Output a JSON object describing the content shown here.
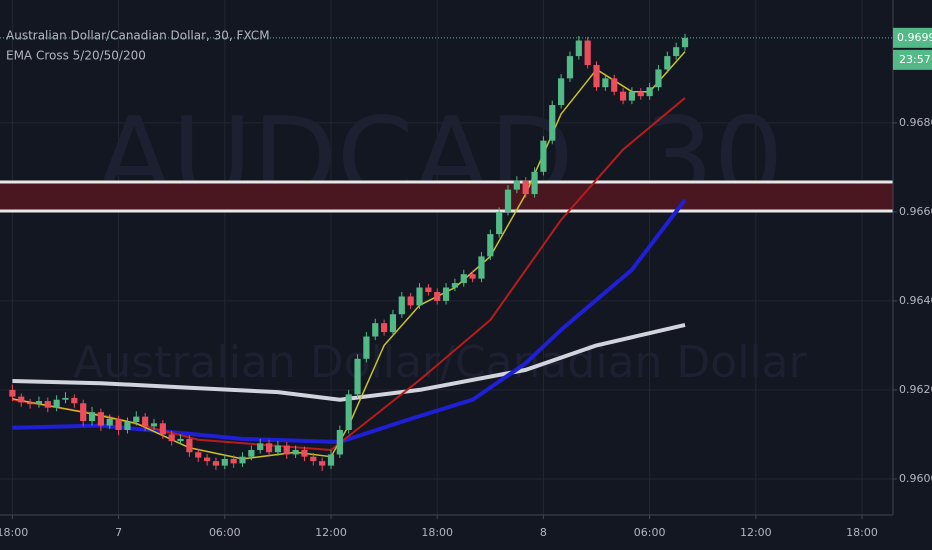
{
  "chart_data": {
    "type": "candlestick",
    "title": "Australian Dollar/Canadian Dollar, 30, FXCM",
    "indicator": "EMA Cross 5/20/50/200",
    "watermark": {
      "symbol": "AUDCAD, 30",
      "description": "Australian Dollar/Canadian Dollar"
    },
    "up_color": "#53b987",
    "down_color": "#eb4d5c",
    "grid": true,
    "xlim": [
      -1.4,
      99.5
    ],
    "ylim": [
      0.95919,
      0.97076
    ],
    "yticks": [
      {
        "value": 0.96,
        "label": "0.96000"
      },
      {
        "value": 0.962,
        "label": "0.96200"
      },
      {
        "value": 0.964,
        "label": "0.96400"
      },
      {
        "value": 0.966,
        "label": "0.96600"
      },
      {
        "value": 0.968,
        "label": "0.96800"
      }
    ],
    "xticks": [
      {
        "value": 0,
        "label": "18:00"
      },
      {
        "value": 12,
        "label": "7"
      },
      {
        "value": 24,
        "label": "06:00"
      },
      {
        "value": 36,
        "label": "12:00"
      },
      {
        "value": 48,
        "label": "18:00"
      },
      {
        "value": 60,
        "label": "8"
      },
      {
        "value": 72,
        "label": "06:00"
      },
      {
        "value": 84,
        "label": "12:00"
      },
      {
        "value": 96,
        "label": "18:00"
      }
    ],
    "zone": {
      "low": 0.96602,
      "high": 0.96667,
      "color": "#4a1620",
      "edge_color": "#e8e8e8"
    },
    "last_price": {
      "value": 0.96991,
      "label": "0.96991",
      "color": "#53b987"
    },
    "countdown": "23:57",
    "candles": [
      [
        0.962,
        0.96212,
        0.96175,
        0.96185
      ],
      [
        0.96185,
        0.96192,
        0.96162,
        0.96172
      ],
      [
        0.96172,
        0.9618,
        0.96158,
        0.96168
      ],
      [
        0.96168,
        0.96185,
        0.9616,
        0.96175
      ],
      [
        0.96175,
        0.96183,
        0.9615,
        0.9616
      ],
      [
        0.9616,
        0.96188,
        0.96152,
        0.96178
      ],
      [
        0.96178,
        0.96195,
        0.9617,
        0.96182
      ],
      [
        0.96182,
        0.9619,
        0.9616,
        0.9617
      ],
      [
        0.9617,
        0.96178,
        0.96118,
        0.9613
      ],
      [
        0.9613,
        0.96162,
        0.9612,
        0.9615
      ],
      [
        0.9615,
        0.96158,
        0.96108,
        0.9612
      ],
      [
        0.9612,
        0.96145,
        0.96112,
        0.96135
      ],
      [
        0.96135,
        0.96142,
        0.96098,
        0.9611
      ],
      [
        0.9611,
        0.96138,
        0.96102,
        0.96128
      ],
      [
        0.96128,
        0.96152,
        0.9612,
        0.9614
      ],
      [
        0.9614,
        0.96148,
        0.96108,
        0.96118
      ],
      [
        0.96118,
        0.96135,
        0.9611,
        0.96125
      ],
      [
        0.96125,
        0.96132,
        0.9609,
        0.961
      ],
      [
        0.961,
        0.96108,
        0.96075,
        0.96085
      ],
      [
        0.96085,
        0.961,
        0.96078,
        0.9609
      ],
      [
        0.9609,
        0.96098,
        0.9605,
        0.9606
      ],
      [
        0.9606,
        0.96068,
        0.96038,
        0.96048
      ],
      [
        0.96048,
        0.96056,
        0.9603,
        0.9604
      ],
      [
        0.9604,
        0.96048,
        0.9602,
        0.9603
      ],
      [
        0.9603,
        0.96055,
        0.96022,
        0.96045
      ],
      [
        0.96045,
        0.96053,
        0.96025,
        0.96035
      ],
      [
        0.96035,
        0.9606,
        0.96027,
        0.9605
      ],
      [
        0.9605,
        0.96075,
        0.96042,
        0.96065
      ],
      [
        0.96065,
        0.9609,
        0.96057,
        0.9608
      ],
      [
        0.9608,
        0.96088,
        0.9605,
        0.9606
      ],
      [
        0.9606,
        0.96085,
        0.96052,
        0.96075
      ],
      [
        0.96075,
        0.96083,
        0.96045,
        0.96055
      ],
      [
        0.96055,
        0.96075,
        0.96047,
        0.96065
      ],
      [
        0.96065,
        0.96073,
        0.9604,
        0.9605
      ],
      [
        0.9605,
        0.96058,
        0.9603,
        0.9604
      ],
      [
        0.9604,
        0.96048,
        0.96018,
        0.9603
      ],
      [
        0.9603,
        0.96065,
        0.96022,
        0.96055
      ],
      [
        0.96055,
        0.9612,
        0.96047,
        0.9611
      ],
      [
        0.9611,
        0.962,
        0.96102,
        0.9619
      ],
      [
        0.9619,
        0.9628,
        0.96182,
        0.9627
      ],
      [
        0.9627,
        0.9633,
        0.96262,
        0.9632
      ],
      [
        0.9632,
        0.9636,
        0.96312,
        0.9635
      ],
      [
        0.9635,
        0.96358,
        0.96322,
        0.9633
      ],
      [
        0.9633,
        0.9638,
        0.96322,
        0.9637
      ],
      [
        0.9637,
        0.9642,
        0.96362,
        0.9641
      ],
      [
        0.9641,
        0.96418,
        0.96382,
        0.9639
      ],
      [
        0.9639,
        0.9644,
        0.96382,
        0.9643
      ],
      [
        0.9643,
        0.96438,
        0.96412,
        0.9642
      ],
      [
        0.9642,
        0.96428,
        0.96392,
        0.964
      ],
      [
        0.964,
        0.9644,
        0.96392,
        0.9643
      ],
      [
        0.9643,
        0.9645,
        0.96422,
        0.9644
      ],
      [
        0.9644,
        0.9647,
        0.96432,
        0.9646
      ],
      [
        0.9646,
        0.96468,
        0.96442,
        0.9645
      ],
      [
        0.9645,
        0.9651,
        0.96442,
        0.965
      ],
      [
        0.965,
        0.9656,
        0.96492,
        0.9655
      ],
      [
        0.9655,
        0.9661,
        0.96542,
        0.966
      ],
      [
        0.966,
        0.9666,
        0.96592,
        0.9665
      ],
      [
        0.9665,
        0.9668,
        0.96642,
        0.9667
      ],
      [
        0.9667,
        0.96678,
        0.96632,
        0.9664
      ],
      [
        0.9664,
        0.967,
        0.96632,
        0.9669
      ],
      [
        0.9669,
        0.9677,
        0.96682,
        0.9676
      ],
      [
        0.9676,
        0.9685,
        0.96752,
        0.9684
      ],
      [
        0.9684,
        0.9691,
        0.96832,
        0.969
      ],
      [
        0.969,
        0.9696,
        0.96892,
        0.9695
      ],
      [
        0.9695,
        0.96995,
        0.96942,
        0.96985
      ],
      [
        0.96985,
        0.96993,
        0.96922,
        0.9693
      ],
      [
        0.9693,
        0.96938,
        0.96872,
        0.9688
      ],
      [
        0.9688,
        0.9691,
        0.96872,
        0.969
      ],
      [
        0.969,
        0.96908,
        0.96862,
        0.9687
      ],
      [
        0.9687,
        0.96878,
        0.96842,
        0.9685
      ],
      [
        0.9685,
        0.9688,
        0.96842,
        0.9687
      ],
      [
        0.9687,
        0.96878,
        0.96852,
        0.9686
      ],
      [
        0.9686,
        0.9689,
        0.96852,
        0.9688
      ],
      [
        0.9688,
        0.9693,
        0.96872,
        0.9692
      ],
      [
        0.9692,
        0.9696,
        0.96912,
        0.9695
      ],
      [
        0.9695,
        0.9698,
        0.96942,
        0.9697
      ],
      [
        0.9697,
        0.97,
        0.96962,
        0.96991
      ]
    ],
    "series": [
      {
        "color": "#d1d4dc",
        "width": 4,
        "x": [
          0,
          10,
          20,
          30,
          37,
          46,
          58,
          66,
          76
        ],
        "values": [
          0.9622,
          0.96215,
          0.96205,
          0.96195,
          0.96178,
          0.962,
          0.96245,
          0.963,
          0.96346
        ]
      },
      {
        "color": "#1f1fd6",
        "width": 4,
        "x": [
          0,
          10,
          26,
          37,
          45,
          52,
          58,
          62,
          70,
          76
        ],
        "values": [
          0.96115,
          0.9612,
          0.9609,
          0.96083,
          0.96135,
          0.96178,
          0.9626,
          0.96335,
          0.9647,
          0.96627
        ]
      },
      {
        "color": "#b71c1c",
        "width": 2,
        "x": [
          0,
          10,
          21,
          36,
          46,
          54,
          62,
          69,
          76
        ],
        "values": [
          0.96178,
          0.96144,
          0.96088,
          0.96065,
          0.96222,
          0.96357,
          0.96582,
          0.9674,
          0.96856
        ]
      },
      {
        "color": "#c9c326",
        "width": 1.5,
        "x": [
          0,
          8,
          14,
          20,
          26,
          32,
          36,
          38,
          42,
          46,
          50,
          54,
          58,
          62,
          66,
          70,
          72,
          76
        ],
        "values": [
          0.9618,
          0.9615,
          0.96125,
          0.9607,
          0.96045,
          0.9606,
          0.9605,
          0.9612,
          0.963,
          0.9639,
          0.9643,
          0.965,
          0.9664,
          0.9682,
          0.9692,
          0.9687,
          0.9687,
          0.9696
        ]
      }
    ]
  }
}
